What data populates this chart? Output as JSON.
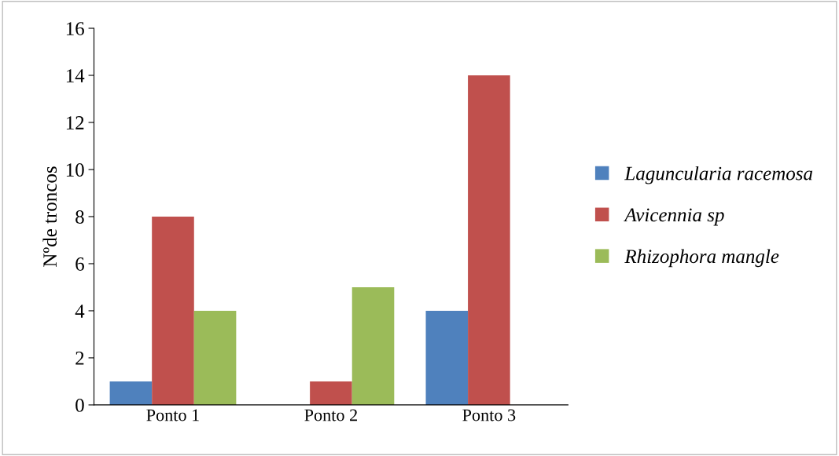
{
  "chart_data": {
    "type": "bar",
    "ylabel": "Nºde troncos",
    "categories": [
      "Ponto 1",
      "Ponto 2",
      "Ponto 3"
    ],
    "series": [
      {
        "name": "Laguncularia racemosa",
        "color": "#4f81bd",
        "values": [
          1,
          0,
          4
        ]
      },
      {
        "name": "Avicennia sp",
        "color": "#c0504d",
        "values": [
          8,
          1,
          14
        ]
      },
      {
        "name": "Rhizophora mangle",
        "color": "#9bbb59",
        "values": [
          4,
          5,
          0
        ]
      }
    ],
    "ylim": [
      0,
      16
    ],
    "yticks": [
      0,
      2,
      4,
      6,
      8,
      10,
      12,
      14,
      16
    ],
    "grid": false,
    "legend": "right"
  }
}
